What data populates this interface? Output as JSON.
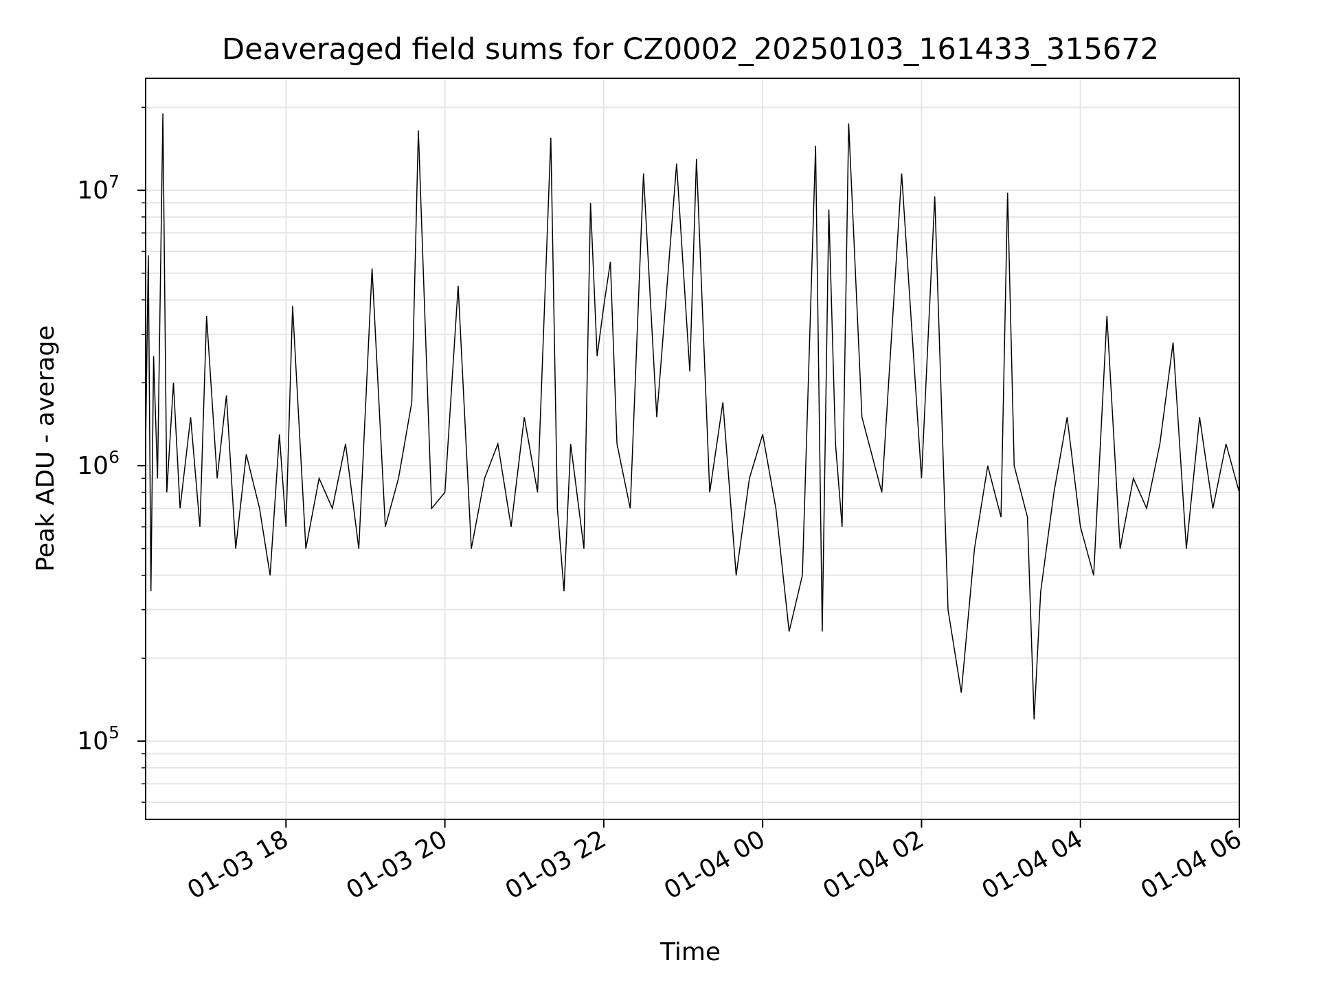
{
  "chart_data": {
    "type": "line",
    "title": "Deaveraged field sums for CZ0002_20250103_161433_315672",
    "xlabel": "Time",
    "ylabel": "Peak ADU - average",
    "yscale": "log",
    "grid": true,
    "legend": "none",
    "xlim": [
      "2025-01-03 16:14",
      "2025-01-04 06:00"
    ],
    "ylim": [
      52000,
      25500000
    ],
    "x_ticks": [
      {
        "value": "2025-01-03 18:00",
        "label": "01-03 18"
      },
      {
        "value": "2025-01-03 20:00",
        "label": "01-03 20"
      },
      {
        "value": "2025-01-03 22:00",
        "label": "01-03 22"
      },
      {
        "value": "2025-01-04 00:00",
        "label": "01-04 00"
      },
      {
        "value": "2025-01-04 02:00",
        "label": "01-04 02"
      },
      {
        "value": "2025-01-04 04:00",
        "label": "01-04 04"
      },
      {
        "value": "2025-01-04 06:00",
        "label": "01-04 06"
      }
    ],
    "y_ticks": [
      {
        "value": 100000,
        "base": "10",
        "exp": "5"
      },
      {
        "value": 1000000,
        "base": "10",
        "exp": "6"
      },
      {
        "value": 10000000,
        "base": "10",
        "exp": "7"
      }
    ],
    "colors": {
      "line": "#000000",
      "grid": "#e6e6e6",
      "axes": "#000000"
    },
    "series": [
      {
        "x": [
          "2025-01-03 16:14",
          "2025-01-03 16:16",
          "2025-01-03 16:18",
          "2025-01-03 16:20",
          "2025-01-03 16:23",
          "2025-01-03 16:27",
          "2025-01-03 16:30",
          "2025-01-03 16:35",
          "2025-01-03 16:40",
          "2025-01-03 16:48",
          "2025-01-03 16:55",
          "2025-01-03 17:00",
          "2025-01-03 17:08",
          "2025-01-03 17:15",
          "2025-01-03 17:22",
          "2025-01-03 17:30",
          "2025-01-03 17:40",
          "2025-01-03 17:48",
          "2025-01-03 17:55",
          "2025-01-03 18:00",
          "2025-01-03 18:05",
          "2025-01-03 18:15",
          "2025-01-03 18:25",
          "2025-01-03 18:35",
          "2025-01-03 18:45",
          "2025-01-03 18:55",
          "2025-01-03 19:00",
          "2025-01-03 19:05",
          "2025-01-03 19:15",
          "2025-01-03 19:25",
          "2025-01-03 19:35",
          "2025-01-03 19:40",
          "2025-01-03 19:50",
          "2025-01-03 20:00",
          "2025-01-03 20:10",
          "2025-01-03 20:20",
          "2025-01-03 20:30",
          "2025-01-03 20:40",
          "2025-01-03 20:50",
          "2025-01-03 21:00",
          "2025-01-03 21:10",
          "2025-01-03 21:20",
          "2025-01-03 21:25",
          "2025-01-03 21:30",
          "2025-01-03 21:35",
          "2025-01-03 21:45",
          "2025-01-03 21:50",
          "2025-01-03 21:55",
          "2025-01-03 22:00",
          "2025-01-03 22:05",
          "2025-01-03 22:10",
          "2025-01-03 22:20",
          "2025-01-03 22:30",
          "2025-01-03 22:40",
          "2025-01-03 22:55",
          "2025-01-03 23:05",
          "2025-01-03 23:10",
          "2025-01-03 23:20",
          "2025-01-03 23:30",
          "2025-01-03 23:40",
          "2025-01-03 23:50",
          "2025-01-04 00:00",
          "2025-01-04 00:10",
          "2025-01-04 00:20",
          "2025-01-04 00:30",
          "2025-01-04 00:40",
          "2025-01-04 00:45",
          "2025-01-04 00:50",
          "2025-01-04 00:55",
          "2025-01-04 01:00",
          "2025-01-04 01:05",
          "2025-01-04 01:15",
          "2025-01-04 01:30",
          "2025-01-04 01:45",
          "2025-01-04 02:00",
          "2025-01-04 02:10",
          "2025-01-04 02:20",
          "2025-01-04 02:30",
          "2025-01-04 02:40",
          "2025-01-04 02:50",
          "2025-01-04 03:00",
          "2025-01-04 03:05",
          "2025-01-04 03:10",
          "2025-01-04 03:20",
          "2025-01-04 03:25",
          "2025-01-04 03:30",
          "2025-01-04 03:40",
          "2025-01-04 03:50",
          "2025-01-04 04:00",
          "2025-01-04 04:10",
          "2025-01-04 04:20",
          "2025-01-04 04:30",
          "2025-01-04 04:40",
          "2025-01-04 04:50",
          "2025-01-04 05:00",
          "2025-01-04 05:10",
          "2025-01-04 05:20",
          "2025-01-04 05:30",
          "2025-01-04 05:40",
          "2025-01-04 05:50",
          "2025-01-04 06:00"
        ],
        "values": [
          1200000,
          5800000,
          350000,
          2500000,
          900000,
          19000000,
          800000,
          2000000,
          700000,
          1500000,
          600000,
          3500000,
          900000,
          1800000,
          500000,
          1100000,
          700000,
          400000,
          1300000,
          600000,
          3800000,
          500000,
          900000,
          700000,
          1200000,
          500000,
          1600000,
          5200000,
          600000,
          900000,
          1700000,
          16500000,
          700000,
          800000,
          4500000,
          500000,
          900000,
          1200000,
          600000,
          1500000,
          800000,
          15500000,
          700000,
          350000,
          1200000,
          500000,
          9000000,
          2500000,
          3800000,
          5500000,
          1200000,
          700000,
          11500000,
          1500000,
          12500000,
          2200000,
          13000000,
          800000,
          1700000,
          400000,
          900000,
          1300000,
          700000,
          250000,
          400000,
          14500000,
          250000,
          8500000,
          1200000,
          600000,
          17500000,
          1500000,
          800000,
          11500000,
          900000,
          9500000,
          300000,
          150000,
          500000,
          1000000,
          650000,
          9800000,
          1000000,
          650000,
          120000,
          350000,
          800000,
          1500000,
          600000,
          400000,
          3500000,
          500000,
          900000,
          700000,
          1200000,
          2800000,
          500000,
          1500000,
          700000,
          1200000,
          800000
        ]
      }
    ]
  }
}
